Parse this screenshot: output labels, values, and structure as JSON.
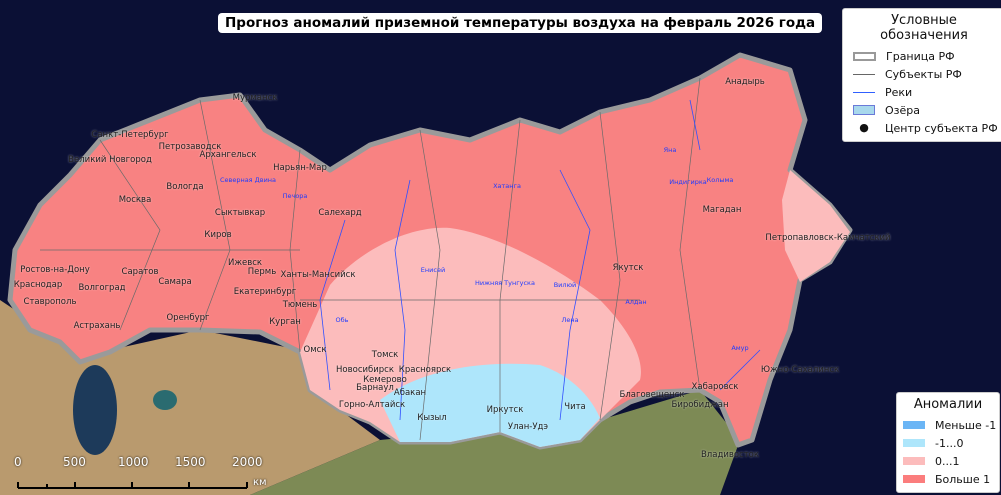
{
  "title": "Прогноз аномалий приземной температуры воздуха на февраль 2026 года",
  "legend_main": {
    "title": "Условные обозначения",
    "items": [
      {
        "label": "Граница РФ",
        "symbol": "gray-thick-outline"
      },
      {
        "label": "Субъекты РФ",
        "symbol": "gray-line"
      },
      {
        "label": "Реки",
        "symbol": "blue-line"
      },
      {
        "label": "Озёра",
        "symbol": "lightblue-box"
      },
      {
        "label": "Центр субъекта РФ",
        "symbol": "black-dot"
      }
    ]
  },
  "legend_anomaly": {
    "title": "Аномалии",
    "items": [
      {
        "label": "Меньше -1",
        "color": "#6bb5f5"
      },
      {
        "label": "-1...0",
        "color": "#aee6fb"
      },
      {
        "label": "0...1",
        "color": "#fcbcbc"
      },
      {
        "label": "Больше 1",
        "color": "#fb7d7d"
      }
    ]
  },
  "scale_bar": {
    "ticks": [
      "0",
      "500",
      "1000",
      "1500",
      "2000"
    ],
    "unit": "км"
  },
  "cities": [
    "Мурманск",
    "Санкт-Петербург",
    "Петрозаводск",
    "Архангельск",
    "Великий Новгород",
    "Вологда",
    "Нарьян-Мар",
    "Сыктывкар",
    "Салехард",
    "Москва",
    "Киров",
    "Ижевск",
    "Пермь",
    "Ханты-Мансийск",
    "Екатеринбург",
    "Тюмень",
    "Курган",
    "Самара",
    "Саратов",
    "Ростов-на-Дону",
    "Краснодар",
    "Ставрополь",
    "Астрахань",
    "Волгоград",
    "Оренбург",
    "Омск",
    "Томск",
    "Новосибирск",
    "Кемерово",
    "Барнаул",
    "Красноярск",
    "Абакан",
    "Горно-Алтайск",
    "Кызыл",
    "Иркутск",
    "Улан-Удэ",
    "Чита",
    "Якутск",
    "Магадан",
    "Анадырь",
    "Петропавловск-Камчатский",
    "Хабаровск",
    "Биробиджан",
    "Благовещенск",
    "Южно-Сахалинск",
    "Владивосток"
  ],
  "rivers": [
    "Енисей",
    "Лена",
    "Обь",
    "Вилюй",
    "Колыма",
    "Индигирка",
    "Яна",
    "Алдан",
    "Амур",
    "Хатанга",
    "Печора",
    "Северная Двина",
    "Нижняя Тунгуска"
  ]
}
